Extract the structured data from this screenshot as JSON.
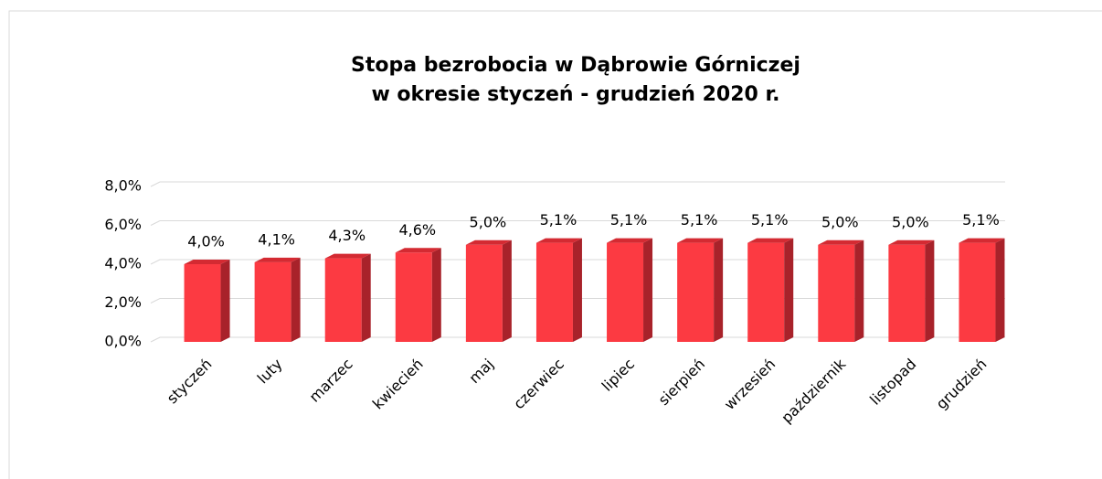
{
  "chart_data": {
    "type": "bar3d",
    "title": [
      "Stopa bezrobocia  w Dąbrowie Górniczej",
      "w okresie  styczeń  -  grudzień  2020  r."
    ],
    "categories": [
      "styczeń",
      "luty",
      "marzec",
      "kwiecień",
      "maj",
      "czerwiec",
      "lipiec",
      "sierpień",
      "wrzesień",
      "październik",
      "listopad",
      "grudzień"
    ],
    "values": [
      4.0,
      4.1,
      4.3,
      4.6,
      5.0,
      5.1,
      5.1,
      5.1,
      5.1,
      5.0,
      5.0,
      5.1
    ],
    "value_labels": [
      "4,0%",
      "4,1%",
      "4,3%",
      "4,6%",
      "5,0%",
      "5,1%",
      "5,1%",
      "5,1%",
      "5,1%",
      "5,0%",
      "5,0%",
      "5,1%"
    ],
    "color": "#fc3a42",
    "ylim": [
      0,
      8
    ],
    "yticks": [
      {
        "value": 0,
        "label": "0,0%"
      },
      {
        "value": 2,
        "label": "2,0%"
      },
      {
        "value": 4,
        "label": "4,0%"
      },
      {
        "value": 6,
        "label": "6,0%"
      },
      {
        "value": 8,
        "label": "8,0%"
      }
    ],
    "grid": true
  }
}
